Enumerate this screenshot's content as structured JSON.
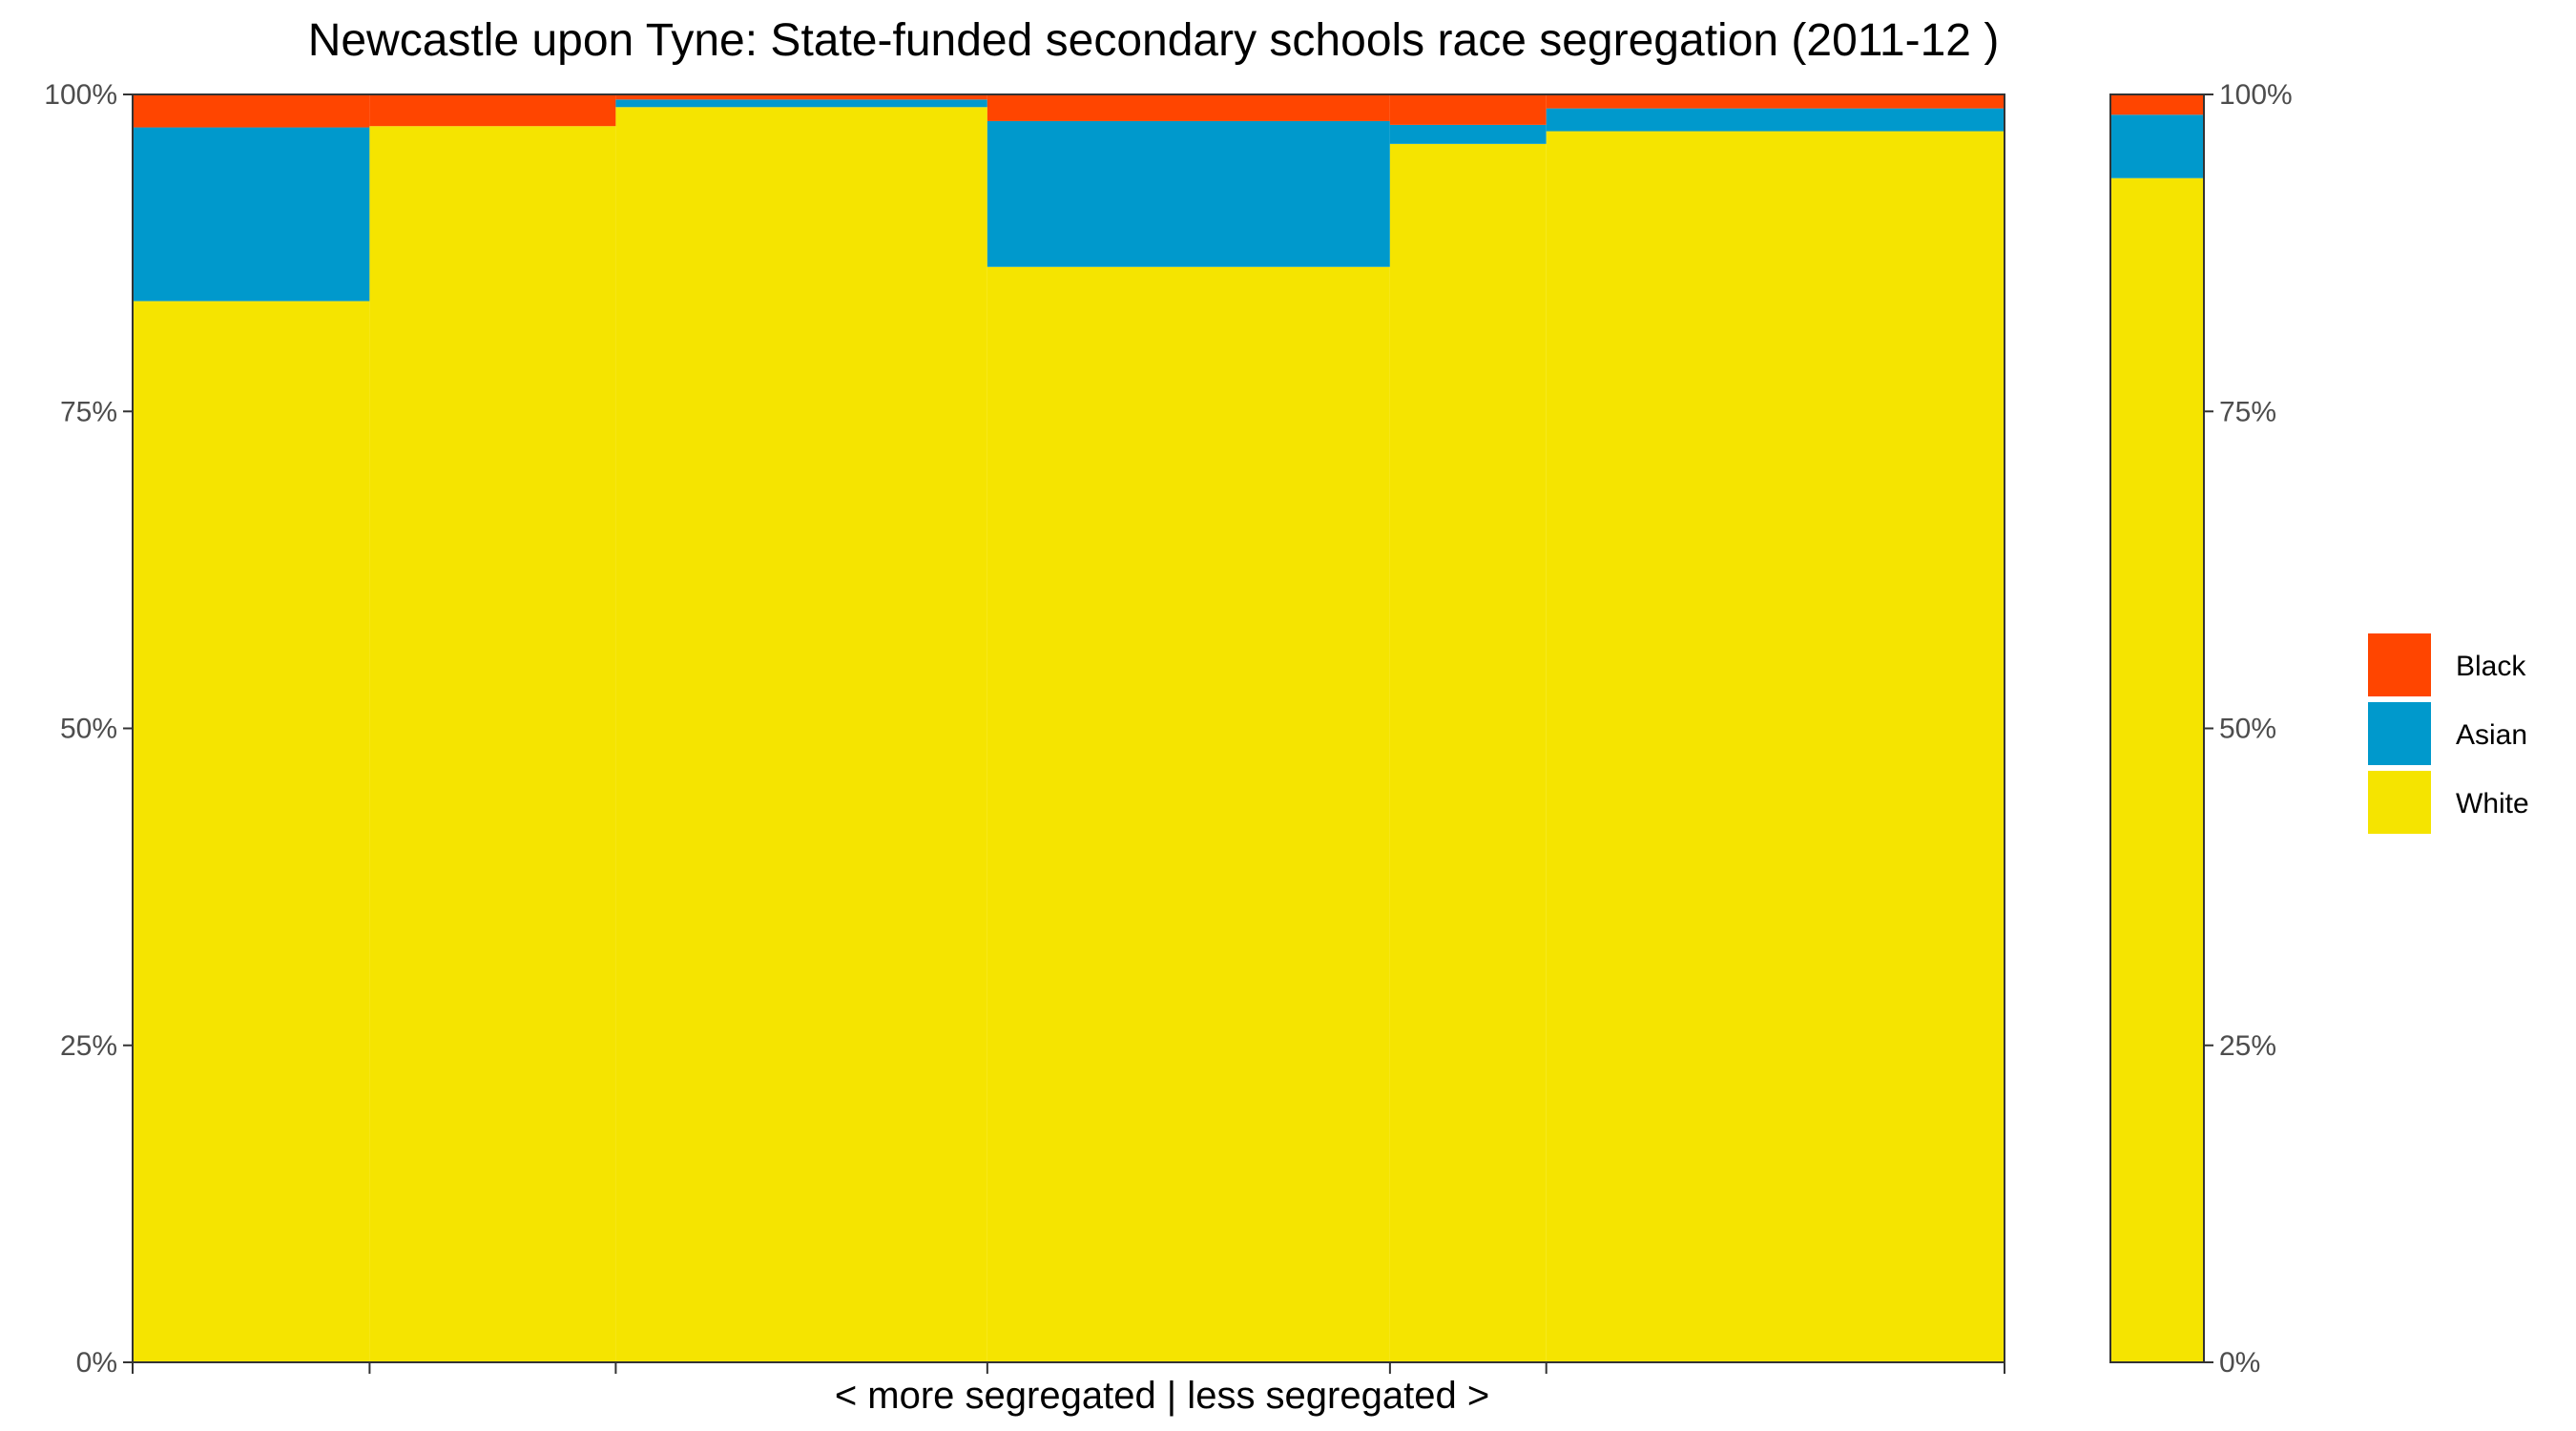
{
  "chart_data": {
    "type": "bar",
    "subtype": "stacked-proportional-mekko",
    "title": "Newcastle upon Tyne: State-funded secondary schools race segregation (2011-12 )",
    "xlabel": "< more segregated | less segregated >",
    "ylabel": "",
    "ylim": [
      0,
      1
    ],
    "y_ticks": [
      "0%",
      "25%",
      "50%",
      "75%",
      "100%"
    ],
    "secondary_y_axis": true,
    "grid": false,
    "legend_position": "right",
    "series": [
      {
        "name": "Black",
        "color": "#FF4500"
      },
      {
        "name": "Asian",
        "color": "#0099CC"
      },
      {
        "name": "White",
        "color": "#F5E400"
      }
    ],
    "columns": [
      {
        "x_start": 0.0,
        "x_end": 0.1266,
        "White": 0.837,
        "Asian": 0.137,
        "Black": 0.026
      },
      {
        "x_start": 0.1266,
        "x_end": 0.2581,
        "White": 0.975,
        "Asian": 0.0,
        "Black": 0.025
      },
      {
        "x_start": 0.2581,
        "x_end": 0.4566,
        "White": 0.99,
        "Asian": 0.006,
        "Black": 0.004
      },
      {
        "x_start": 0.4566,
        "x_end": 0.6717,
        "White": 0.864,
        "Asian": 0.115,
        "Black": 0.021
      },
      {
        "x_start": 0.6717,
        "x_end": 0.7552,
        "White": 0.961,
        "Asian": 0.015,
        "Black": 0.024
      },
      {
        "x_start": 0.7552,
        "x_end": 1.0,
        "White": 0.971,
        "Asian": 0.018,
        "Black": 0.011
      }
    ],
    "overall": {
      "White": 0.934,
      "Asian": 0.05,
      "Black": 0.016
    },
    "x_tick_positions": [
      0.0,
      0.1266,
      0.2581,
      0.4566,
      0.6717,
      0.7552,
      1.0
    ]
  }
}
